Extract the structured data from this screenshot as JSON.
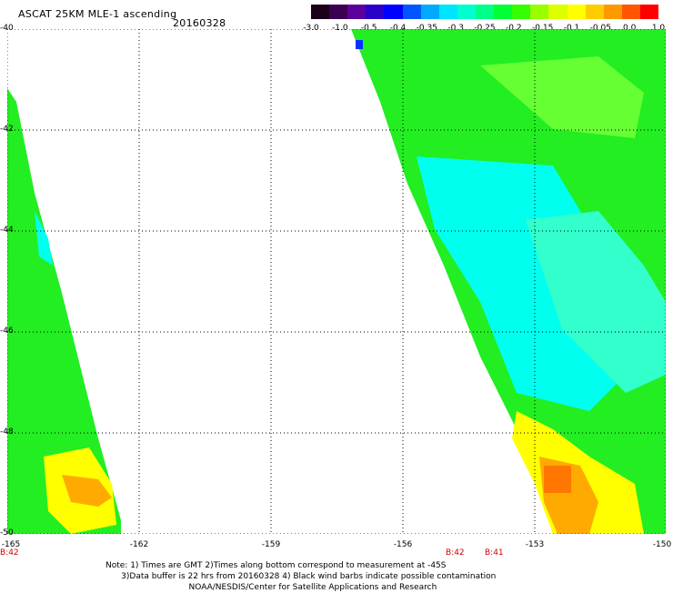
{
  "header": {
    "title": "ASCAT 25KM MLE-1 ascending",
    "date": "20160328"
  },
  "colorbar": {
    "colors": [
      "#1a0018",
      "#3b0050",
      "#5b009b",
      "#2a00c8",
      "#0000ff",
      "#0055ff",
      "#00aaff",
      "#00e5ff",
      "#00ffcc",
      "#00ff88",
      "#00ff33",
      "#33ff00",
      "#99ff00",
      "#ddff00",
      "#ffff00",
      "#ffcc00",
      "#ff9900",
      "#ff5500",
      "#ff0000"
    ],
    "labels": [
      "-3.0",
      "-1.0",
      "-0.5",
      "-0.4",
      "-0.35",
      "-0.3",
      "-0.25",
      "-0.2",
      "-0.15",
      "-0.1",
      "-0.05",
      "0.0",
      "1.0"
    ]
  },
  "map": {
    "lat_labels": [
      "-40",
      "-42",
      "-44",
      "-46",
      "-48",
      "-50"
    ],
    "lon_labels": [
      "-165",
      "-162",
      "-159",
      "-156",
      "-153",
      "-150"
    ],
    "swath_colors": {
      "green": "#22ee22",
      "light_green": "#66ff33",
      "cyan": "#00ffee",
      "light_cyan": "#33ffcc",
      "yellow": "#ffff00",
      "orange": "#ffaa00",
      "dark_orange": "#ff7700",
      "blue": "#0033ff"
    }
  },
  "beams": [
    {
      "text": "B:42"
    },
    {
      "text": "B:42"
    },
    {
      "text": "B:41"
    }
  ],
  "notes": [
    "Note: 1) Times are GMT 2)Times along bottom correspond to measurement at -45S",
    "      3)Data buffer is 22 hrs from 20160328 4) Black wind barbs indicate possible contamination",
    "                                NOAA/NESDIS/Center for Satellite Applications and Research"
  ]
}
